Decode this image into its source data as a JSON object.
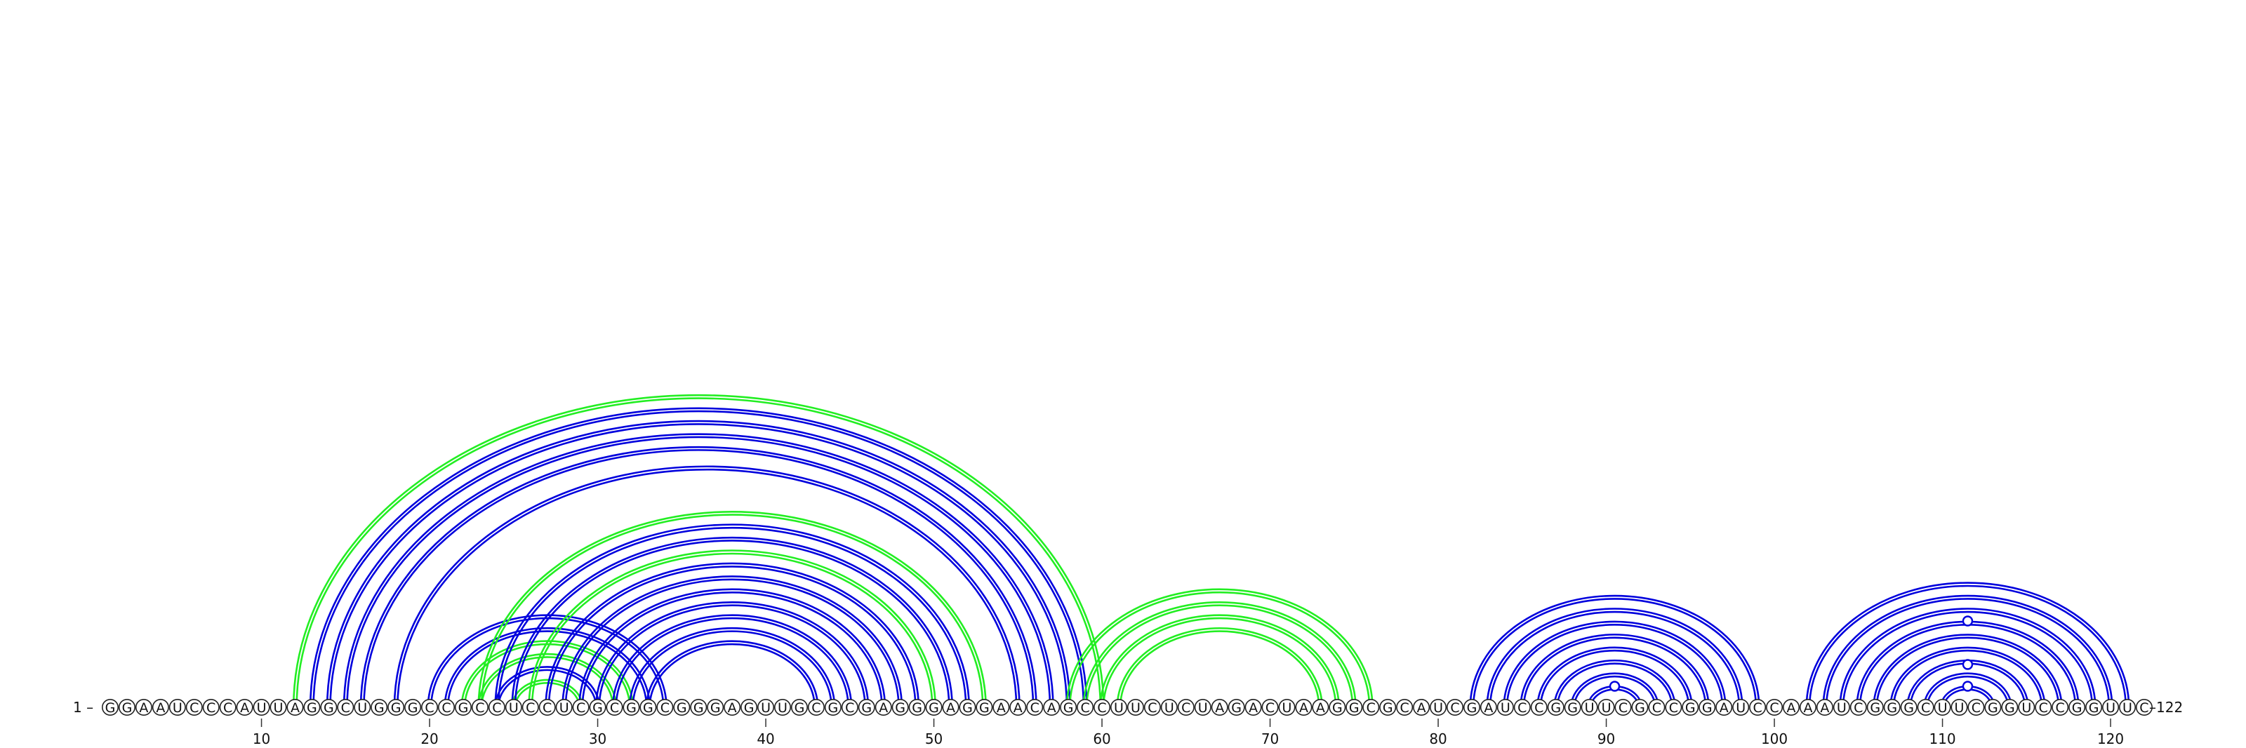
{
  "diagram": {
    "sequence": "GGAAUCCCAUUAGGCUGGGCCGCCUCCUCGCGGCGGGAGUUGCGCGAGGGAGGAACAGCCUUCUCUAGACUAAGGCGCAUCGAUCCGGUUCGCCGGAUCCAAAUCGGGCUUCGGUCCGGUUC",
    "start_label": "1 –",
    "end_label": "–122",
    "ticks": [
      10,
      20,
      30,
      40,
      50,
      60,
      70,
      80,
      90,
      100,
      110,
      120
    ],
    "colors": {
      "primary": "#0000dd",
      "secondary": "#22ee22"
    },
    "arcs": [
      {
        "i": 12,
        "j": 60,
        "color": "secondary"
      },
      {
        "i": 13,
        "j": 59,
        "color": "primary"
      },
      {
        "i": 14,
        "j": 58,
        "color": "primary"
      },
      {
        "i": 15,
        "j": 57,
        "color": "primary"
      },
      {
        "i": 16,
        "j": 56,
        "color": "primary"
      },
      {
        "i": 18,
        "j": 55,
        "color": "primary"
      },
      {
        "i": 20,
        "j": 34,
        "color": "primary"
      },
      {
        "i": 21,
        "j": 33,
        "color": "primary"
      },
      {
        "i": 22,
        "j": 32,
        "color": "secondary"
      },
      {
        "i": 23,
        "j": 31,
        "color": "secondary"
      },
      {
        "i": 24,
        "j": 30,
        "color": "primary"
      },
      {
        "i": 25,
        "j": 29,
        "color": "secondary"
      },
      {
        "i": 23,
        "j": 53,
        "color": "secondary"
      },
      {
        "i": 24,
        "j": 52,
        "color": "primary"
      },
      {
        "i": 25,
        "j": 51,
        "color": "primary"
      },
      {
        "i": 26,
        "j": 50,
        "color": "secondary"
      },
      {
        "i": 27,
        "j": 49,
        "color": "primary"
      },
      {
        "i": 28,
        "j": 48,
        "color": "primary"
      },
      {
        "i": 29,
        "j": 47,
        "color": "primary"
      },
      {
        "i": 30,
        "j": 46,
        "color": "primary"
      },
      {
        "i": 31,
        "j": 45,
        "color": "primary"
      },
      {
        "i": 32,
        "j": 44,
        "color": "primary"
      },
      {
        "i": 33,
        "j": 43,
        "color": "primary"
      },
      {
        "i": 58,
        "j": 76,
        "color": "secondary"
      },
      {
        "i": 59,
        "j": 75,
        "color": "secondary"
      },
      {
        "i": 60,
        "j": 74,
        "color": "secondary"
      },
      {
        "i": 61,
        "j": 73,
        "color": "secondary"
      },
      {
        "i": 82,
        "j": 99,
        "color": "primary"
      },
      {
        "i": 83,
        "j": 98,
        "color": "primary"
      },
      {
        "i": 84,
        "j": 97,
        "color": "primary"
      },
      {
        "i": 85,
        "j": 96,
        "color": "primary"
      },
      {
        "i": 86,
        "j": 95,
        "color": "primary"
      },
      {
        "i": 87,
        "j": 94,
        "color": "primary"
      },
      {
        "i": 88,
        "j": 93,
        "color": "primary"
      },
      {
        "i": 89,
        "j": 92,
        "color": "primary"
      },
      {
        "i": 102,
        "j": 121,
        "color": "primary"
      },
      {
        "i": 103,
        "j": 120,
        "color": "primary"
      },
      {
        "i": 104,
        "j": 119,
        "color": "primary"
      },
      {
        "i": 105,
        "j": 118,
        "color": "primary"
      },
      {
        "i": 106,
        "j": 117,
        "color": "primary"
      },
      {
        "i": 107,
        "j": 116,
        "color": "primary"
      },
      {
        "i": 108,
        "j": 115,
        "color": "primary"
      },
      {
        "i": 109,
        "j": 114,
        "color": "primary"
      },
      {
        "i": 110,
        "j": 113,
        "color": "primary"
      }
    ],
    "markers": [
      {
        "pos": 90.5,
        "level": 1,
        "color": "primary"
      },
      {
        "pos": 111.5,
        "level": 1,
        "color": "primary"
      },
      {
        "pos": 111.5,
        "level": 2,
        "color": "primary"
      },
      {
        "pos": 111.5,
        "level": 4,
        "color": "primary"
      }
    ]
  }
}
